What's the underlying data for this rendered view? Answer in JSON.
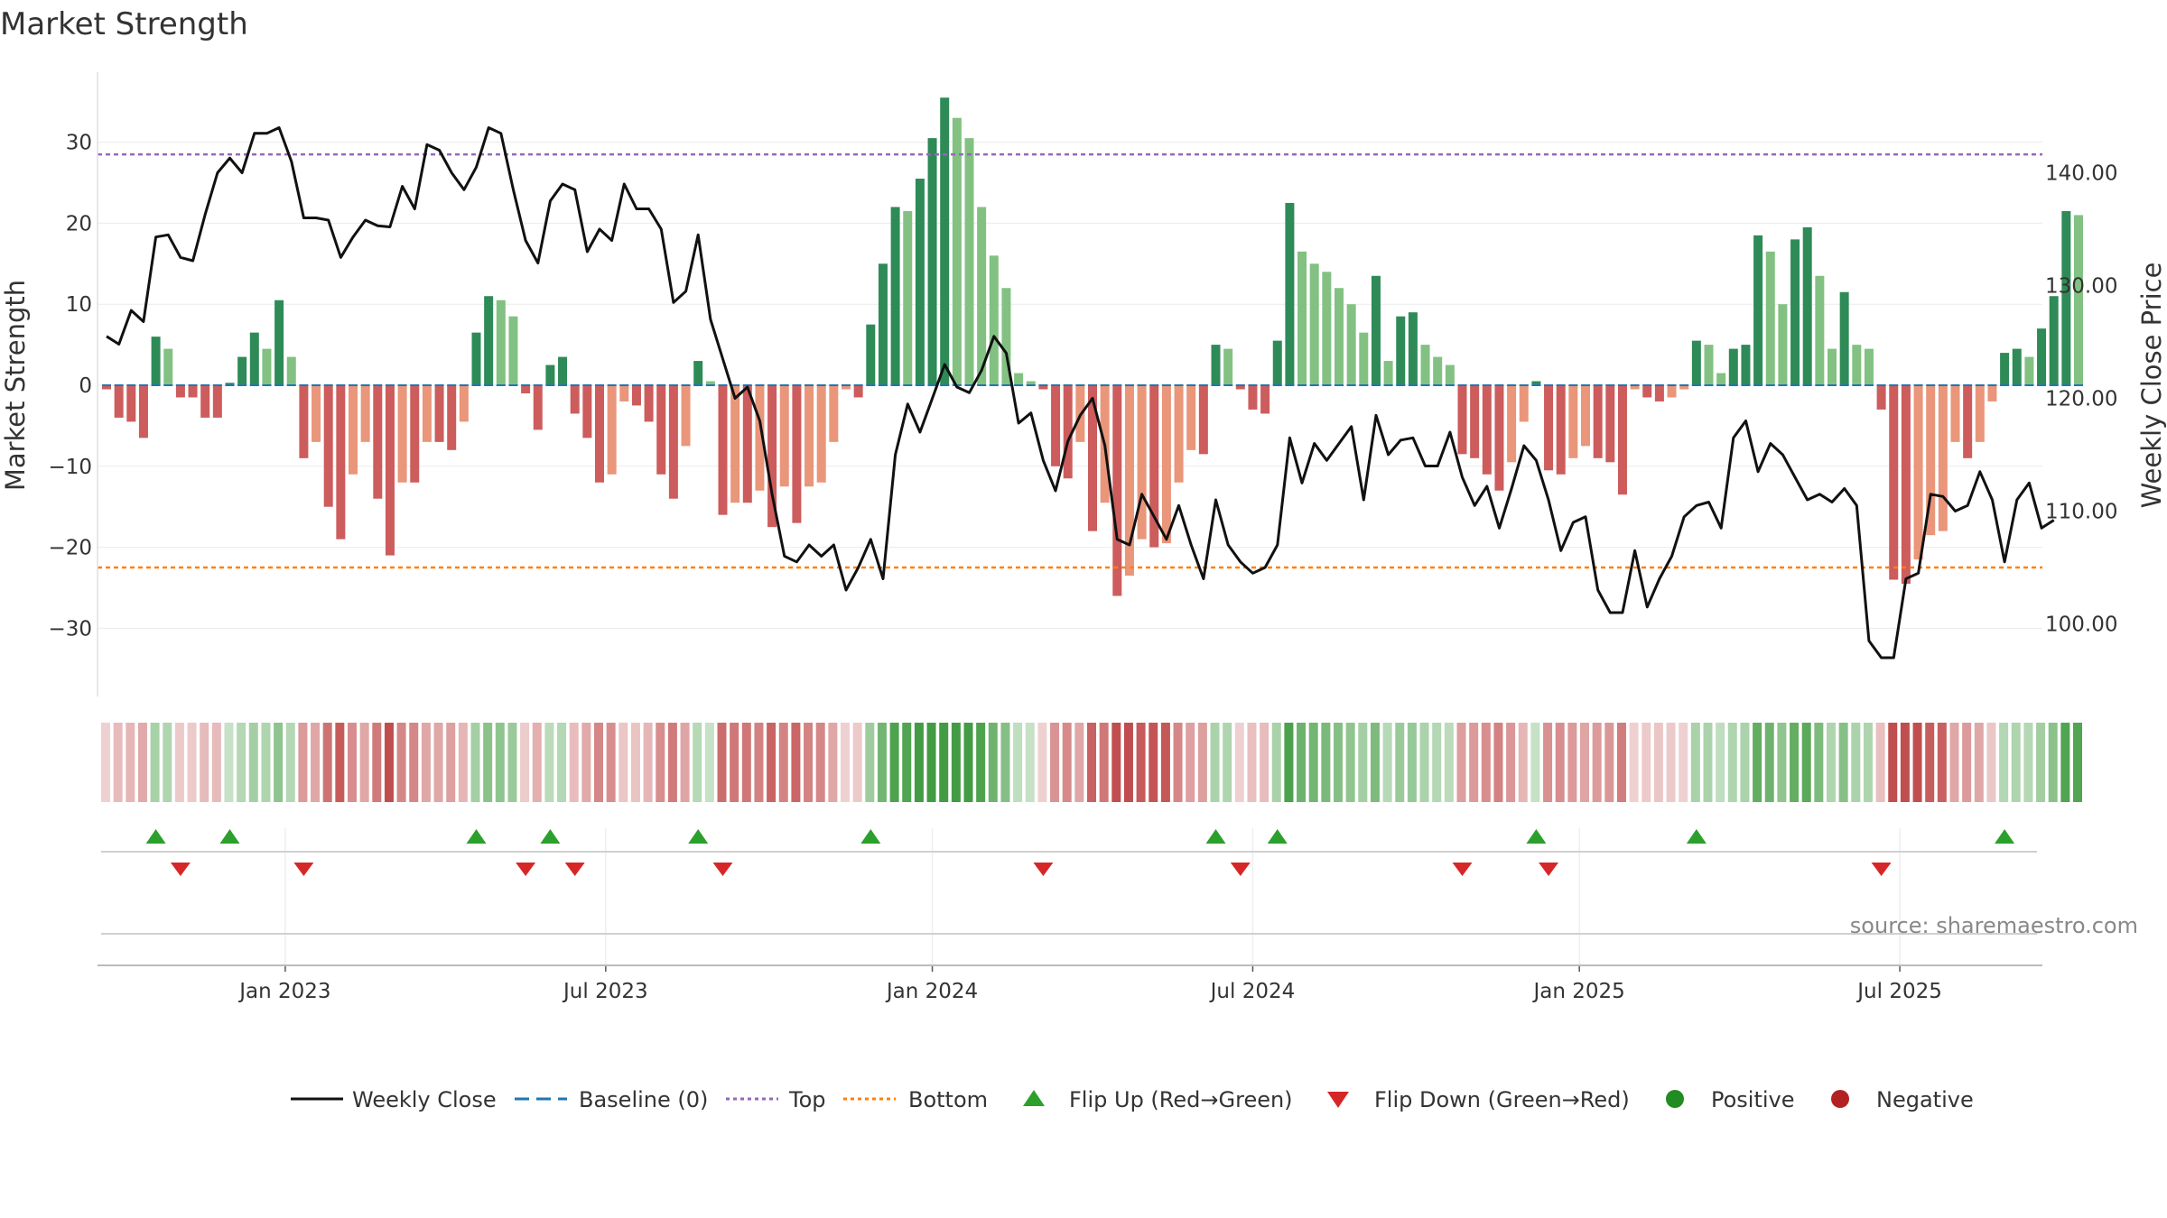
{
  "chart_data": {
    "type": "bar+line",
    "title": "Market Strength",
    "ylabel_left": "Market Strength",
    "ylabel_right": "Weekly Close Price",
    "ylim_left": [
      -38.5,
      38.5
    ],
    "ylim_right": [
      93.0,
      148.0
    ],
    "y_ticks_left": [
      30,
      20,
      10,
      0,
      -10,
      -20,
      -30
    ],
    "y_tick_labels_left": [
      "30",
      "20",
      "10",
      "0",
      "−10",
      "−20",
      "−30"
    ],
    "y_ticks_right": [
      140,
      130,
      120,
      110,
      100
    ],
    "y_tick_labels_right": [
      "140.00",
      "130.00",
      "120.00",
      "110.00",
      "100.00"
    ],
    "top_line": 28.5,
    "bottom_line": -22.5,
    "x_tick_labels": [
      "Jan 2023",
      "Jul 2023",
      "Jan 2024",
      "Jul 2024",
      "Jan 2025",
      "Jul 2025"
    ],
    "x_tick_weeks": [
      14.5,
      40.5,
      67,
      93,
      119.5,
      145.5
    ],
    "series": [
      {
        "name": "Market Strength",
        "values": [
          -0.5,
          -4,
          -4.5,
          -6.5,
          6,
          4.5,
          -1.5,
          -1.5,
          -4,
          -4,
          0.3,
          3.5,
          6.5,
          4.5,
          10.5,
          3.5,
          -9,
          -7,
          -15,
          -19,
          -11,
          -7,
          -14,
          -21,
          -12,
          -12,
          -7,
          -7,
          -8,
          -4.5,
          6.5,
          11,
          10.5,
          8.5,
          -1,
          -5.5,
          2.5,
          3.5,
          -3.5,
          -6.5,
          -12,
          -11,
          -2,
          -2.5,
          -4.5,
          -11,
          -14,
          -7.5,
          3,
          0.5,
          -16,
          -14.5,
          -14.5,
          -13,
          -17.5,
          -12.5,
          -17,
          -12.5,
          -12,
          -7,
          -0.5,
          -1.5,
          7.5,
          15,
          22,
          21.5,
          25.5,
          30.5,
          35.5,
          33,
          30.5,
          22,
          16,
          12,
          1.5,
          0.5,
          -0.5,
          -10,
          -11.5,
          -7,
          -18,
          -14.5,
          -26,
          -23.5,
          -19,
          -20,
          -19.5,
          -12,
          -8,
          -8.5,
          5,
          4.5,
          -0.5,
          -3,
          -3.5,
          5.5,
          22.5,
          16.5,
          15,
          14,
          12,
          10,
          6.5,
          13.5,
          3,
          8.5,
          9,
          5,
          3.5,
          2.5,
          -8.5,
          -9,
          -11,
          -13,
          -9.5,
          -4.5,
          0.5,
          -10.5,
          -11,
          -9,
          -7.5,
          -9,
          -9.5,
          -13.5,
          -0.5,
          -1.5,
          -2,
          -1.5,
          -0.5,
          5.5,
          5,
          1.5,
          4.5,
          5,
          18.5,
          16.5,
          10,
          18,
          19.5,
          13.5,
          4.5,
          11.5,
          5,
          4.5,
          -3,
          -24,
          -24.5,
          -21.5,
          -18.5,
          -18,
          -7,
          -9,
          -7,
          -2,
          4,
          4.5,
          3.5,
          7,
          11,
          21.5,
          21
        ]
      },
      {
        "name": "Weekly Close",
        "values": [
          125.5,
          124.8,
          127.8,
          126.8,
          134.3,
          134.5,
          132.5,
          132.2,
          136.3,
          140,
          141.3,
          140,
          143.5,
          143.5,
          144,
          141,
          136,
          136,
          135.8,
          132.5,
          134.3,
          135.8,
          135.3,
          135.2,
          138.8,
          136.8,
          142.5,
          142,
          140,
          138.5,
          140.5,
          144,
          143.5,
          138.5,
          134,
          132,
          137.5,
          139,
          138.5,
          133,
          135,
          134,
          139,
          136.8,
          136.8,
          135,
          128.5,
          129.5,
          134.5,
          127,
          123.5,
          120,
          121,
          118,
          111.5,
          106,
          105.5,
          107,
          106,
          107,
          103,
          105,
          107.5,
          104,
          115,
          119.5,
          117,
          120,
          123,
          121,
          120.5,
          122.5,
          125.5,
          124,
          117.8,
          118.7,
          114.5,
          111.8,
          116.2,
          118.5,
          120,
          115.8,
          107.5,
          107,
          111.5,
          109.5,
          107.5,
          110.5,
          107,
          104,
          111,
          107,
          105.5,
          104.5,
          105,
          107,
          116.5,
          112.5,
          116,
          114.5,
          116,
          117.5,
          111,
          118.5,
          115,
          116.3,
          116.5,
          114,
          114,
          117,
          113,
          110.5,
          112.2,
          108.5,
          112,
          115.8,
          114.5,
          111,
          106.5,
          109,
          109.5,
          103,
          101,
          101,
          106.5,
          101.5,
          104,
          106,
          109.5,
          110.5,
          110.8,
          108.5,
          116.5,
          118,
          113.5,
          116,
          115,
          113,
          111,
          111.5,
          110.8,
          112,
          110.5,
          98.5,
          97,
          97,
          104,
          104.5,
          111.5,
          111.3,
          110,
          110.5,
          113.5,
          111,
          105.5,
          111,
          112.5,
          108.5,
          109.2
        ]
      }
    ],
    "state_strip": "Positive/Negative strength bands (green = positive, red = negative)",
    "flip_markers": "Flip Up (Red→Green) and Flip Down (Green→Red) triangles",
    "source": "source: sharemaestro.com",
    "legend": [
      "Weekly Close",
      "Baseline (0)",
      "Top",
      "Bottom",
      "Flip Up (Red→Green)",
      "Flip Down (Green→Red)",
      "Positive",
      "Negative"
    ],
    "colors": {
      "pos_dark": "#2e8b57",
      "pos_light": "#82c182",
      "neg_dark": "#cd5c5c",
      "neg_light": "#e9967a",
      "line": "#111111",
      "baseline": "#1f77b4",
      "top": "#9467bd",
      "bottom": "#ff7f0e",
      "flip_up": "#2ca02c",
      "flip_down": "#d62728",
      "positive": "#228b22",
      "negative": "#b22222"
    }
  }
}
